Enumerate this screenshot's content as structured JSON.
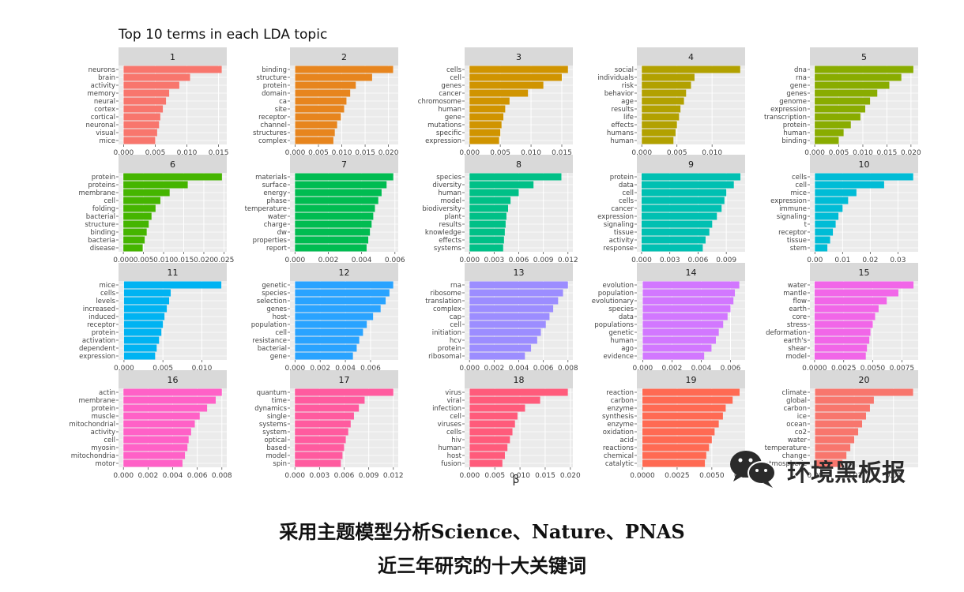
{
  "caption": {
    "line1": "采用主题模型分析Science、Nature、PNAS",
    "line2": "近三年研究的十大关键词"
  },
  "watermark": {
    "text": "环境黑板报",
    "icon": "wechat-icon"
  },
  "chart_data": {
    "type": "bar",
    "orientation": "horizontal",
    "title": "Top 10 terms in each LDA topic",
    "xlabel": "β",
    "grid": true,
    "panel_colors": [
      "#F8766D",
      "#E7851E",
      "#D09400",
      "#B2A100",
      "#89AC00",
      "#45B500",
      "#00BC51",
      "#00C087",
      "#00C0B2",
      "#00BCD6",
      "#00B3F2",
      "#29A3FF",
      "#9C8DFF",
      "#D277FF",
      "#F166E8",
      "#FF61C7",
      "#FF5B9F",
      "#FF5B7B",
      "#FF6A53",
      "#F8766D"
    ],
    "facets": [
      {
        "topic": "1",
        "terms": [
          "neurons",
          "brain",
          "activity",
          "memory",
          "neural",
          "cortex",
          "cortical",
          "neuronal",
          "visual",
          "mice"
        ],
        "values": [
          0.0155,
          0.0105,
          0.0088,
          0.0072,
          0.0067,
          0.0062,
          0.0058,
          0.0056,
          0.0053,
          0.005
        ],
        "ticks": [
          "0.000",
          "0.005",
          "0.010",
          "0.015"
        ],
        "tick_values": [
          0,
          0.005,
          0.01,
          0.015
        ],
        "xlim": [
          -0.0008,
          0.0163
        ]
      },
      {
        "topic": "2",
        "terms": [
          "binding",
          "structure",
          "protein",
          "domain",
          "ca",
          "site",
          "receptor",
          "channel",
          "structures",
          "complex"
        ],
        "values": [
          0.021,
          0.0165,
          0.013,
          0.0118,
          0.011,
          0.0105,
          0.0098,
          0.009,
          0.0085,
          0.0082
        ],
        "ticks": [
          "0.000",
          "0.005",
          "0.010",
          "0.015",
          "0.020"
        ],
        "tick_values": [
          0,
          0.005,
          0.01,
          0.015,
          0.02
        ],
        "xlim": [
          -0.0011,
          0.0221
        ]
      },
      {
        "topic": "3",
        "terms": [
          "cells",
          "cell",
          "genes",
          "cancer",
          "chromosome",
          "human",
          "gene",
          "mutations",
          "specific",
          "expression"
        ],
        "values": [
          0.016,
          0.015,
          0.012,
          0.0095,
          0.0065,
          0.0058,
          0.0055,
          0.0052,
          0.005,
          0.0048
        ],
        "ticks": [
          "0.000",
          "0.005",
          "0.010",
          "0.015"
        ],
        "tick_values": [
          0,
          0.005,
          0.01,
          0.015
        ],
        "xlim": [
          -0.0008,
          0.0168
        ]
      },
      {
        "topic": "4",
        "terms": [
          "social",
          "individuals",
          "risk",
          "behavior",
          "age",
          "results",
          "life",
          "effects",
          "humans",
          "human"
        ],
        "values": [
          0.014,
          0.0075,
          0.007,
          0.0063,
          0.006,
          0.0055,
          0.0053,
          0.005,
          0.0048,
          0.0045
        ],
        "ticks": [
          "0.000",
          "0.005",
          "0.010"
        ],
        "tick_values": [
          0,
          0.005,
          0.01
        ],
        "xlim": [
          -0.0007,
          0.0147
        ]
      },
      {
        "topic": "5",
        "terms": [
          "dna",
          "rna",
          "gene",
          "genes",
          "genome",
          "expression",
          "transcription",
          "protein",
          "human",
          "binding"
        ],
        "values": [
          0.0205,
          0.018,
          0.0155,
          0.013,
          0.0115,
          0.0105,
          0.0095,
          0.0075,
          0.006,
          0.005
        ],
        "ticks": [
          "0.000",
          "0.005",
          "0.010",
          "0.015",
          "0.020"
        ],
        "tick_values": [
          0,
          0.005,
          0.01,
          0.015,
          0.02
        ],
        "xlim": [
          -0.001,
          0.0215
        ]
      },
      {
        "topic": "6",
        "terms": [
          "protein",
          "proteins",
          "membrane",
          "cell",
          "folding",
          "bacterial",
          "structure",
          "binding",
          "bacteria",
          "disease"
        ],
        "values": [
          0.0245,
          0.016,
          0.0115,
          0.0092,
          0.008,
          0.007,
          0.0063,
          0.0058,
          0.0053,
          0.0048
        ],
        "ticks": [
          "0.000",
          "0.005",
          "0.010",
          "0.015",
          "0.020",
          "0.025"
        ],
        "tick_values": [
          0,
          0.005,
          0.01,
          0.015,
          0.02,
          0.025
        ],
        "xlim": [
          -0.0012,
          0.0257
        ]
      },
      {
        "topic": "7",
        "terms": [
          "materials",
          "surface",
          "energy",
          "phase",
          "temperature",
          "water",
          "charge",
          "dw",
          "properties",
          "report"
        ],
        "values": [
          0.0059,
          0.0055,
          0.0052,
          0.005,
          0.0048,
          0.0047,
          0.0046,
          0.0045,
          0.0044,
          0.0043
        ],
        "ticks": [
          "0.000",
          "0.002",
          "0.004",
          "0.006"
        ],
        "tick_values": [
          0,
          0.002,
          0.004,
          0.006
        ],
        "xlim": [
          -0.0003,
          0.0062
        ]
      },
      {
        "topic": "8",
        "terms": [
          "species",
          "diversity",
          "human",
          "model",
          "biodiversity",
          "plant",
          "results",
          "knowledge",
          "effects",
          "systems"
        ],
        "values": [
          0.0112,
          0.0078,
          0.006,
          0.005,
          0.0047,
          0.0045,
          0.0044,
          0.0043,
          0.0042,
          0.0041
        ],
        "ticks": [
          "0.000",
          "0.003",
          "0.006",
          "0.009",
          "0.012"
        ],
        "tick_values": [
          0,
          0.003,
          0.006,
          0.009,
          0.012
        ],
        "xlim": [
          -0.0006,
          0.0126
        ]
      },
      {
        "topic": "9",
        "terms": [
          "protein",
          "data",
          "cell",
          "cells",
          "cancer",
          "expression",
          "signaling",
          "tissue",
          "activity",
          "response"
        ],
        "values": [
          0.0105,
          0.0098,
          0.009,
          0.0088,
          0.0085,
          0.008,
          0.0075,
          0.0072,
          0.0068,
          0.0065
        ],
        "ticks": [
          "0.000",
          "0.003",
          "0.006",
          "0.009"
        ],
        "tick_values": [
          0,
          0.003,
          0.006,
          0.009
        ],
        "xlim": [
          -0.0005,
          0.011
        ]
      },
      {
        "topic": "10",
        "terms": [
          "cells",
          "cell",
          "mice",
          "expression",
          "immune",
          "signaling",
          "t",
          "receptor",
          "tissue",
          "stem"
        ],
        "values": [
          0.0355,
          0.025,
          0.015,
          0.012,
          0.01,
          0.0085,
          0.0075,
          0.0065,
          0.0055,
          0.0045
        ],
        "ticks": [
          "0.00",
          "0.01",
          "0.02",
          "0.03"
        ],
        "tick_values": [
          0,
          0.01,
          0.02,
          0.03
        ],
        "xlim": [
          -0.0018,
          0.0373
        ]
      },
      {
        "topic": "11",
        "terms": [
          "mice",
          "cells",
          "levels",
          "increased",
          "induced",
          "receptor",
          "protein",
          "activation",
          "dependent",
          "expression"
        ],
        "values": [
          0.0125,
          0.006,
          0.0058,
          0.0055,
          0.0052,
          0.005,
          0.0048,
          0.0045,
          0.0042,
          0.004
        ],
        "ticks": [
          "0.000",
          "0.005",
          "0.010"
        ],
        "tick_values": [
          0,
          0.005,
          0.01
        ],
        "xlim": [
          -0.0007,
          0.0132
        ]
      },
      {
        "topic": "12",
        "terms": [
          "genetic",
          "species",
          "selection",
          "genes",
          "host",
          "population",
          "cell",
          "resistance",
          "bacterial",
          "gene"
        ],
        "values": [
          0.0078,
          0.0075,
          0.0072,
          0.0068,
          0.0062,
          0.0057,
          0.0054,
          0.0051,
          0.0049,
          0.0046
        ],
        "ticks": [
          "0.000",
          "0.002",
          "0.004",
          "0.006"
        ],
        "tick_values": [
          0,
          0.002,
          0.004,
          0.006
        ],
        "xlim": [
          -0.0004,
          0.0082
        ]
      },
      {
        "topic": "13",
        "terms": [
          "rna",
          "ribosome",
          "translation",
          "complex",
          "cap",
          "cell",
          "initiation",
          "hcv",
          "protein",
          "ribosomal"
        ],
        "values": [
          0.008,
          0.0076,
          0.0072,
          0.0068,
          0.0065,
          0.0062,
          0.0058,
          0.0055,
          0.005,
          0.0045
        ],
        "ticks": [
          "0.000",
          "0.002",
          "0.004",
          "0.006",
          "0.008"
        ],
        "tick_values": [
          0,
          0.002,
          0.004,
          0.006,
          0.008
        ],
        "xlim": [
          -0.0004,
          0.0084
        ]
      },
      {
        "topic": "14",
        "terms": [
          "evolution",
          "population",
          "evolutionary",
          "species",
          "data",
          "populations",
          "genetic",
          "human",
          "ago",
          "evidence"
        ],
        "values": [
          0.0066,
          0.0063,
          0.0062,
          0.006,
          0.0058,
          0.0055,
          0.0052,
          0.005,
          0.0047,
          0.0042
        ],
        "ticks": [
          "0.000",
          "0.002",
          "0.004",
          "0.006"
        ],
        "tick_values": [
          0,
          0.002,
          0.004,
          0.006
        ],
        "xlim": [
          -0.0004,
          0.007
        ]
      },
      {
        "topic": "15",
        "terms": [
          "water",
          "mantle",
          "flow",
          "earth",
          "core",
          "stress",
          "deformation",
          "earth's",
          "shear",
          "model"
        ],
        "values": [
          0.0085,
          0.0072,
          0.0062,
          0.0055,
          0.0052,
          0.005,
          0.0048,
          0.0047,
          0.0045,
          0.0044
        ],
        "ticks": [
          "0.0000",
          "0.0025",
          "0.0050",
          "0.0075"
        ],
        "tick_values": [
          0,
          0.0025,
          0.005,
          0.0075
        ],
        "xlim": [
          -0.0004,
          0.0089
        ]
      },
      {
        "topic": "16",
        "terms": [
          "actin",
          "membrane",
          "protein",
          "muscle",
          "mitochondrial",
          "activity",
          "cell",
          "myosin",
          "mitochondria",
          "motor"
        ],
        "values": [
          0.008,
          0.0075,
          0.0068,
          0.0062,
          0.0058,
          0.0055,
          0.0053,
          0.0052,
          0.005,
          0.0048
        ],
        "ticks": [
          "0.000",
          "0.002",
          "0.004",
          "0.006",
          "0.008"
        ],
        "tick_values": [
          0,
          0.002,
          0.004,
          0.006,
          0.008
        ],
        "xlim": [
          -0.0004,
          0.0084
        ]
      },
      {
        "topic": "17",
        "terms": [
          "quantum",
          "time",
          "dynamics",
          "single",
          "systems",
          "system",
          "optical",
          "based",
          "model",
          "spin"
        ],
        "values": [
          0.012,
          0.0085,
          0.0078,
          0.0072,
          0.0068,
          0.0065,
          0.0062,
          0.006,
          0.0058,
          0.0056
        ],
        "ticks": [
          "0.000",
          "0.003",
          "0.006",
          "0.009",
          "0.012"
        ],
        "tick_values": [
          0,
          0.003,
          0.006,
          0.009,
          0.012
        ],
        "xlim": [
          -0.0006,
          0.0126
        ]
      },
      {
        "topic": "18",
        "terms": [
          "virus",
          "viral",
          "infection",
          "cell",
          "viruses",
          "cells",
          "hiv",
          "human",
          "host",
          "fusion"
        ],
        "values": [
          0.0195,
          0.014,
          0.011,
          0.0095,
          0.009,
          0.0085,
          0.008,
          0.0075,
          0.007,
          0.0065
        ],
        "ticks": [
          "0.000",
          "0.005",
          "0.010",
          "0.015",
          "0.020"
        ],
        "tick_values": [
          0,
          0.005,
          0.01,
          0.015,
          0.02
        ],
        "xlim": [
          -0.001,
          0.0205
        ]
      },
      {
        "topic": "19",
        "terms": [
          "reaction",
          "carbon",
          "enzyme",
          "synthesis",
          "enzyme",
          "oxidation",
          "acid",
          "reactions",
          "chemical",
          "catalytic"
        ],
        "values": [
          0.007,
          0.0065,
          0.006,
          0.0058,
          0.0055,
          0.0052,
          0.005,
          0.0048,
          0.0046,
          0.0045
        ],
        "ticks": [
          "0.0000",
          "0.0025",
          "0.0050",
          "0.0075"
        ],
        "tick_values": [
          0,
          0.0025,
          0.005,
          0.0075
        ],
        "xlim": [
          -0.0004,
          0.0074
        ]
      },
      {
        "topic": "20",
        "terms": [
          "climate",
          "global",
          "carbon",
          "ice",
          "ocean",
          "co2",
          "water",
          "temperature",
          "change",
          "atmospheric"
        ],
        "values": [
          0.025,
          0.015,
          0.014,
          0.013,
          0.012,
          0.011,
          0.01,
          0.009,
          0.008,
          0.007
        ],
        "ticks": [
          "0.00",
          "0.01",
          "0.02"
        ],
        "tick_values": [
          0,
          0.01,
          0.02
        ],
        "xlim": [
          -0.0013,
          0.0263
        ]
      }
    ]
  }
}
